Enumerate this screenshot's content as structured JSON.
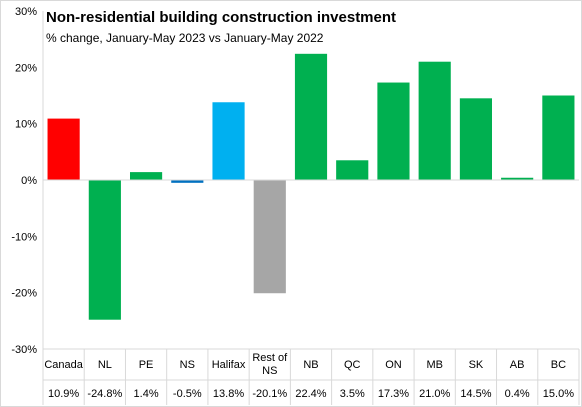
{
  "chart_data": {
    "type": "bar",
    "title": "Non-residential building construction investment",
    "subtitle": "% change, January-May 2023 vs January-May 2022",
    "xlabel": "",
    "ylabel": "",
    "ylim": [
      -30,
      30
    ],
    "y_ticks": [
      30,
      20,
      10,
      0,
      -10,
      -20,
      -30
    ],
    "y_tick_labels": [
      "30%",
      "20%",
      "10%",
      "0%",
      "-10%",
      "-20%",
      "-30%"
    ],
    "grid": false,
    "legend": "none",
    "categories": [
      "Canada",
      "NL",
      "PE",
      "NS",
      "Halifax",
      "Rest of NS",
      "NB",
      "QC",
      "ON",
      "MB",
      "SK",
      "AB",
      "BC"
    ],
    "category_lines": [
      [
        "Canada"
      ],
      [
        "NL"
      ],
      [
        "PE"
      ],
      [
        "NS"
      ],
      [
        "Halifax"
      ],
      [
        "Rest of",
        "NS"
      ],
      [
        "NB"
      ],
      [
        "QC"
      ],
      [
        "ON"
      ],
      [
        "MB"
      ],
      [
        "SK"
      ],
      [
        "AB"
      ],
      [
        "BC"
      ]
    ],
    "values": [
      10.9,
      -24.8,
      1.4,
      -0.5,
      13.8,
      -20.1,
      22.4,
      3.5,
      17.3,
      21.0,
      14.5,
      0.4,
      15.0
    ],
    "value_labels": [
      "10.9%",
      "-24.8%",
      "1.4%",
      "-0.5%",
      "13.8%",
      "-20.1%",
      "22.4%",
      "3.5%",
      "17.3%",
      "21.0%",
      "14.5%",
      "0.4%",
      "15.0%"
    ],
    "colors": [
      "#ff0000",
      "#00b050",
      "#00b050",
      "#0070c0",
      "#00b0f0",
      "#a6a6a6",
      "#00b050",
      "#00b050",
      "#00b050",
      "#00b050",
      "#00b050",
      "#00b050",
      "#00b050"
    ],
    "axis_color": "#d9d9d9"
  }
}
